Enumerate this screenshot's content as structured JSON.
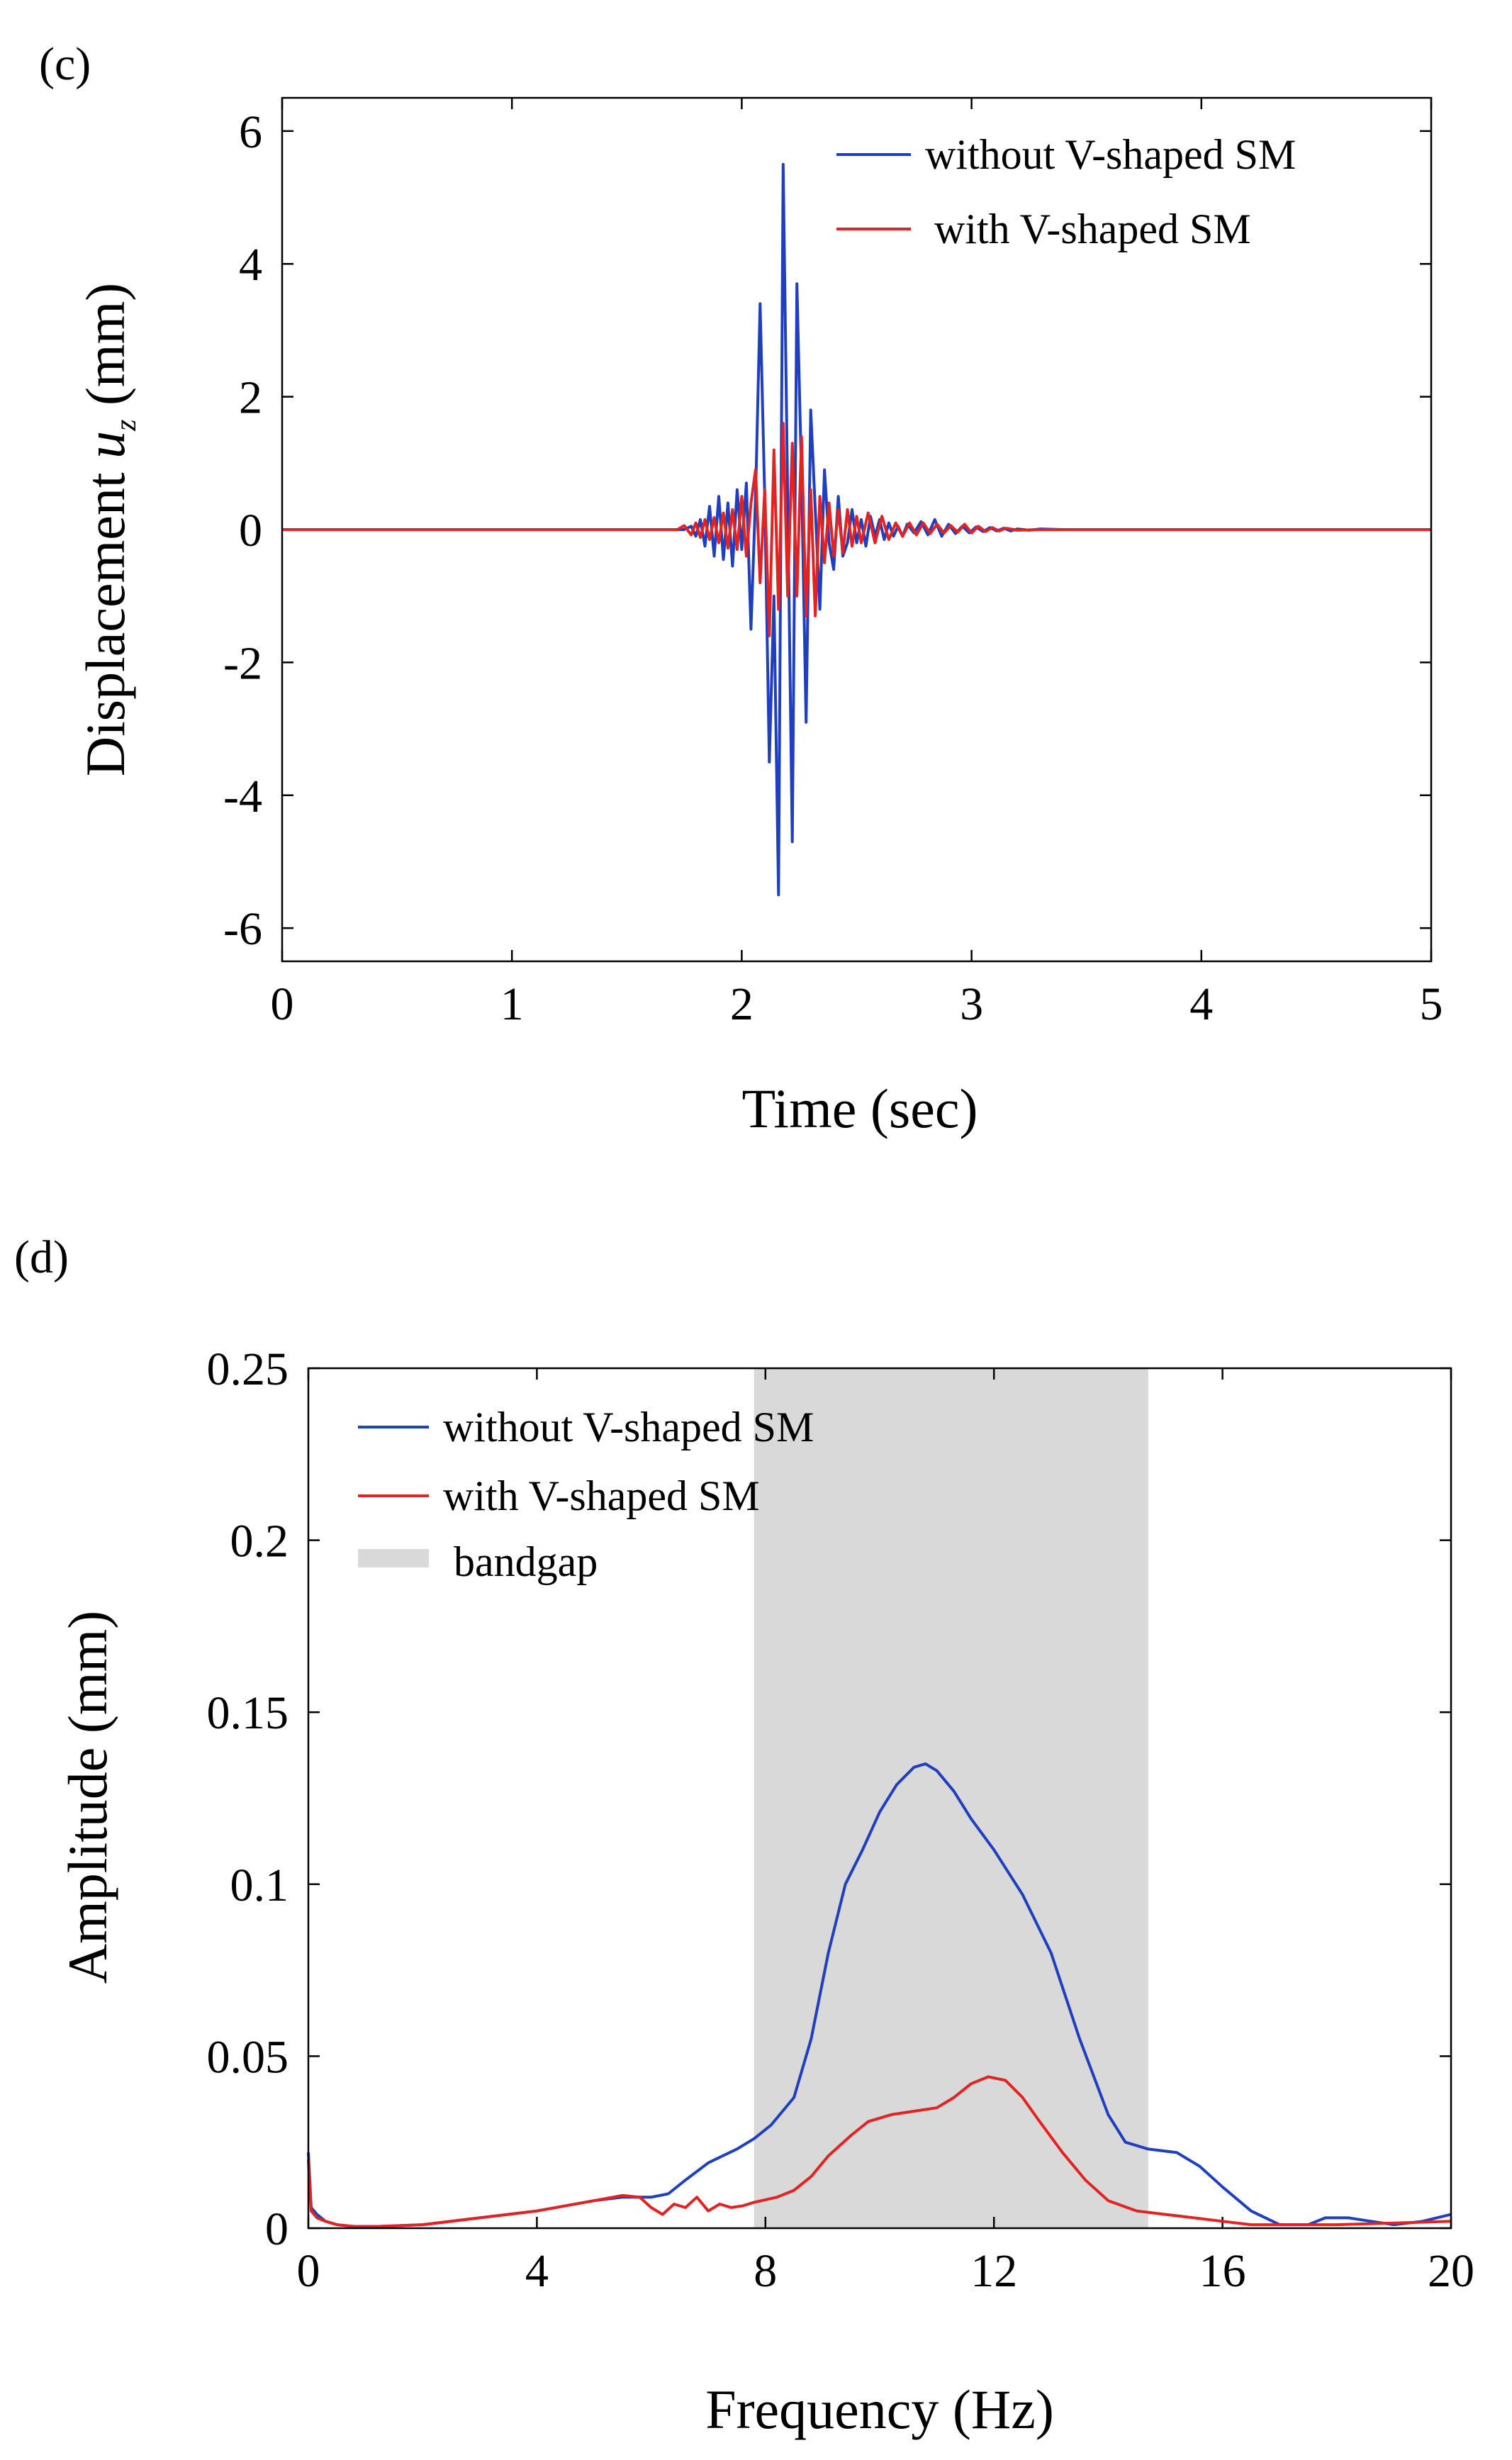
{
  "chart_data": [
    {
      "panel_label": "(c)",
      "type": "line",
      "xlabel": "Time (sec)",
      "ylabel_prefix": "Displacement ",
      "ylabel_var": "u",
      "ylabel_sub": "z",
      "ylabel_suffix": " (mm)",
      "xlim": [
        0,
        5
      ],
      "ylim": [
        -6.5,
        6.5
      ],
      "xticks": [
        0,
        1,
        2,
        3,
        4,
        5
      ],
      "xtick_labels": [
        "0",
        "1",
        "2",
        "3",
        "4",
        "5"
      ],
      "yticks": [
        -6,
        -4,
        -2,
        0,
        2,
        4,
        6
      ],
      "ytick_labels": [
        "-6",
        "-4",
        "-2",
        "0",
        "2",
        "4",
        "6"
      ],
      "legend_position": "top-right",
      "series": [
        {
          "name": "without V-shaped SM",
          "color": "#1f3fbf",
          "x": [
            0,
            1.75,
            1.78,
            1.8,
            1.82,
            1.84,
            1.86,
            1.88,
            1.9,
            1.92,
            1.94,
            1.96,
            1.98,
            2.0,
            2.02,
            2.04,
            2.06,
            2.08,
            2.1,
            2.12,
            2.14,
            2.16,
            2.18,
            2.2,
            2.22,
            2.24,
            2.26,
            2.28,
            2.3,
            2.32,
            2.34,
            2.36,
            2.38,
            2.4,
            2.42,
            2.44,
            2.46,
            2.48,
            2.5,
            2.52,
            2.54,
            2.56,
            2.58,
            2.6,
            2.62,
            2.64,
            2.66,
            2.68,
            2.7,
            2.72,
            2.75,
            2.78,
            2.81,
            2.84,
            2.87,
            2.9,
            2.93,
            2.96,
            2.99,
            3.02,
            3.05,
            3.08,
            3.11,
            3.14,
            3.17,
            3.2,
            3.25,
            3.3,
            3.4,
            3.5,
            5.0
          ],
          "y": [
            0,
            0,
            0.05,
            -0.1,
            0.15,
            -0.25,
            0.35,
            -0.4,
            0.5,
            -0.45,
            0.4,
            -0.55,
            0.6,
            -0.3,
            0.7,
            -1.5,
            0.5,
            3.4,
            0.5,
            -3.5,
            -1.0,
            -5.5,
            5.5,
            0.5,
            -4.7,
            3.7,
            0.8,
            -2.9,
            1.8,
            0.3,
            -1.2,
            0.9,
            -0.2,
            -0.6,
            0.5,
            -0.4,
            -0.2,
            0.3,
            -0.2,
            0.15,
            -0.25,
            0.2,
            -0.1,
            0.15,
            -0.15,
            0.1,
            -0.1,
            0.05,
            -0.1,
            0.08,
            -0.05,
            0.12,
            -0.08,
            0.15,
            -0.1,
            0.08,
            -0.06,
            0.05,
            -0.05,
            0.04,
            -0.03,
            0.03,
            -0.02,
            0.02,
            -0.02,
            0.01,
            -0.01,
            0.01,
            0,
            0,
            0
          ]
        },
        {
          "name": "with V-shaped SM",
          "color": "#e32222",
          "x": [
            0,
            1.72,
            1.75,
            1.78,
            1.8,
            1.82,
            1.84,
            1.86,
            1.88,
            1.9,
            1.92,
            1.94,
            1.96,
            1.98,
            2.0,
            2.02,
            2.04,
            2.06,
            2.08,
            2.1,
            2.12,
            2.14,
            2.16,
            2.18,
            2.2,
            2.22,
            2.24,
            2.26,
            2.28,
            2.3,
            2.32,
            2.34,
            2.36,
            2.38,
            2.4,
            2.42,
            2.44,
            2.46,
            2.48,
            2.5,
            2.52,
            2.55,
            2.58,
            2.61,
            2.64,
            2.67,
            2.7,
            2.73,
            2.76,
            2.79,
            2.82,
            2.85,
            2.88,
            2.91,
            2.94,
            2.97,
            3.0,
            3.03,
            3.06,
            3.09,
            3.12,
            3.15,
            3.2,
            3.3,
            3.4,
            5.0
          ],
          "y": [
            0,
            0,
            0.06,
            -0.08,
            0.1,
            -0.12,
            0.15,
            -0.15,
            0.18,
            -0.2,
            0.25,
            -0.28,
            0.3,
            -0.3,
            0.5,
            -0.4,
            0.4,
            0.9,
            -0.8,
            0.6,
            -1.6,
            1.2,
            -1.2,
            1.6,
            -1.0,
            1.3,
            -1.0,
            1.4,
            -1.3,
            0.6,
            -1.3,
            0.5,
            -0.5,
            0.4,
            -0.4,
            0.3,
            -0.35,
            0.3,
            -0.25,
            0.2,
            -0.2,
            0.25,
            -0.2,
            0.2,
            -0.15,
            0.1,
            -0.1,
            0.1,
            -0.08,
            0.1,
            -0.06,
            0.08,
            -0.05,
            0.06,
            -0.04,
            0.08,
            -0.05,
            0.05,
            -0.03,
            0.03,
            -0.02,
            0.02,
            -0.01,
            0,
            0,
            0
          ]
        }
      ]
    },
    {
      "panel_label": "(d)",
      "type": "line",
      "xlabel": "Frequency (Hz)",
      "ylabel": "Amplitude (mm)",
      "xlim": [
        0,
        20
      ],
      "ylim": [
        0,
        0.25
      ],
      "xticks": [
        0,
        4,
        8,
        12,
        16,
        20
      ],
      "xtick_labels": [
        "0",
        "4",
        "8",
        "12",
        "16",
        "20"
      ],
      "yticks": [
        0,
        0.05,
        0.1,
        0.15,
        0.2,
        0.25
      ],
      "ytick_labels": [
        "0",
        "0.05",
        "0.1",
        "0.15",
        "0.2",
        "0.25"
      ],
      "legend_position": "top-left",
      "bandgap": {
        "name": "bandgap",
        "x_range": [
          7.8,
          14.7
        ],
        "color": "#d9d9d9"
      },
      "series": [
        {
          "name": "without V-shaped SM",
          "color": "#1f3fbf",
          "x": [
            0,
            0.05,
            0.15,
            0.3,
            0.5,
            0.8,
            1.2,
            2,
            3,
            4,
            5,
            5.5,
            6.0,
            6.3,
            6.6,
            7.0,
            7.5,
            7.8,
            8.1,
            8.5,
            8.8,
            9.1,
            9.4,
            9.7,
            10.0,
            10.3,
            10.6,
            10.8,
            11.0,
            11.3,
            11.6,
            12.0,
            12.5,
            13.0,
            13.5,
            14.0,
            14.3,
            14.7,
            15.2,
            15.6,
            16.0,
            16.5,
            17.0,
            17.5,
            17.8,
            18.2,
            18.6,
            19.0,
            19.5,
            20
          ],
          "y": [
            0.022,
            0.006,
            0.004,
            0.002,
            0.001,
            0.0005,
            0.0005,
            0.001,
            0.003,
            0.005,
            0.008,
            0.009,
            0.009,
            0.01,
            0.014,
            0.019,
            0.023,
            0.026,
            0.03,
            0.038,
            0.055,
            0.08,
            0.1,
            0.11,
            0.121,
            0.129,
            0.134,
            0.135,
            0.133,
            0.127,
            0.119,
            0.11,
            0.097,
            0.08,
            0.055,
            0.033,
            0.025,
            0.023,
            0.022,
            0.018,
            0.012,
            0.005,
            0.001,
            0.001,
            0.003,
            0.003,
            0.002,
            0.001,
            0.002,
            0.004
          ]
        },
        {
          "name": "with V-shaped SM",
          "color": "#e32222",
          "x": [
            0,
            0.05,
            0.15,
            0.3,
            0.5,
            0.8,
            1.2,
            2,
            3,
            4,
            5,
            5.5,
            5.8,
            6.0,
            6.2,
            6.4,
            6.6,
            6.8,
            7.0,
            7.2,
            7.4,
            7.6,
            7.8,
            8.2,
            8.5,
            8.8,
            9.1,
            9.5,
            9.8,
            10.2,
            10.6,
            11.0,
            11.3,
            11.6,
            11.9,
            12.2,
            12.5,
            12.8,
            13.2,
            13.6,
            14.0,
            14.5,
            15.0,
            15.5,
            16.0,
            16.5,
            17.0,
            18.0,
            19.0,
            20
          ],
          "y": [
            0.02,
            0.005,
            0.003,
            0.002,
            0.001,
            0.0005,
            0.0005,
            0.001,
            0.003,
            0.005,
            0.008,
            0.0095,
            0.009,
            0.006,
            0.004,
            0.007,
            0.006,
            0.009,
            0.005,
            0.007,
            0.006,
            0.0065,
            0.0075,
            0.009,
            0.011,
            0.015,
            0.021,
            0.027,
            0.031,
            0.033,
            0.034,
            0.035,
            0.038,
            0.042,
            0.044,
            0.043,
            0.038,
            0.031,
            0.022,
            0.014,
            0.008,
            0.005,
            0.004,
            0.003,
            0.002,
            0.001,
            0.001,
            0.001,
            0.0015,
            0.002
          ]
        }
      ]
    }
  ]
}
